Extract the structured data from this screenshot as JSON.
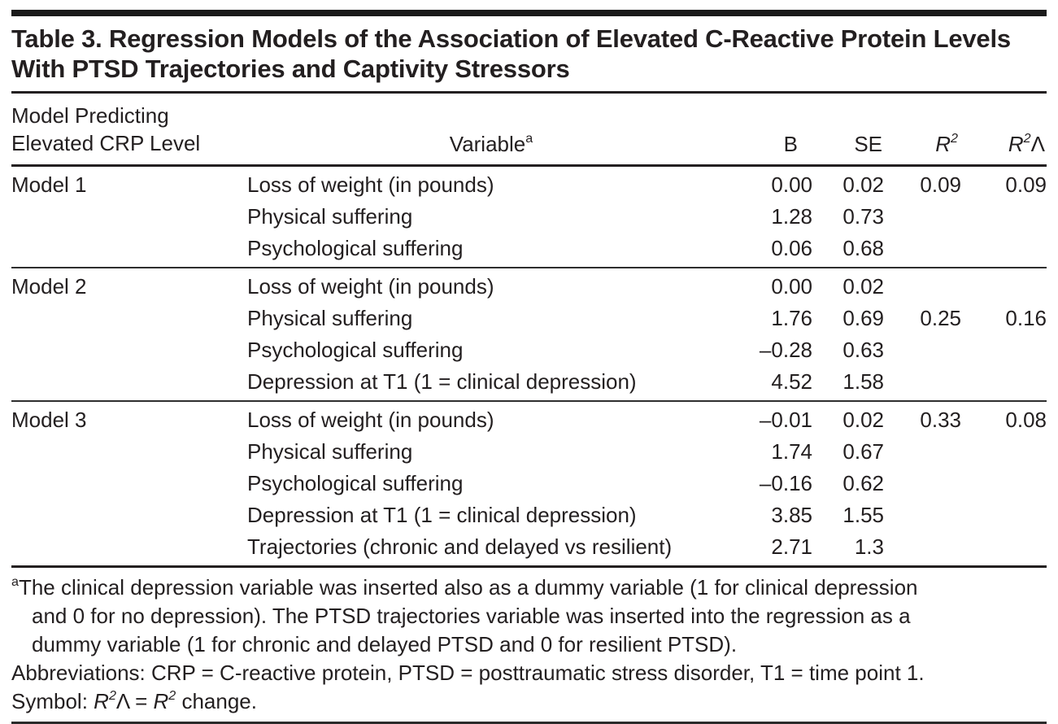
{
  "page": {
    "title": "Table 3. Regression Models of the Association of Elevated C-Reactive Protein Levels With PTSD Trajectories and Captivity Stressors"
  },
  "table": {
    "header": {
      "model_col_line1": "Model Predicting",
      "model_col_line2": "Elevated CRP Level",
      "variable_label": "Variable",
      "variable_footnote_marker": "a",
      "b_label": "B",
      "se_label": "SE",
      "r2_letter": "R",
      "r2_exponent": "2",
      "r2_change_letter": "R",
      "r2_change_exponent": "2",
      "r2_change_symbol": "Λ"
    },
    "models": [
      {
        "name": "Model 1",
        "rows": [
          {
            "variable": "Loss of weight (in pounds)",
            "b": "0.00",
            "se": "0.02",
            "r2": "0.09",
            "r2_change": "0.09"
          },
          {
            "variable": "Physical suffering",
            "b": "1.28",
            "se": "0.73",
            "r2": "",
            "r2_change": ""
          },
          {
            "variable": "Psychological suffering",
            "b": "0.06",
            "se": "0.68",
            "r2": "",
            "r2_change": ""
          }
        ]
      },
      {
        "name": "Model 2",
        "rows": [
          {
            "variable": "Loss of weight (in pounds)",
            "b": "0.00",
            "se": "0.02",
            "r2": "",
            "r2_change": ""
          },
          {
            "variable": "Physical suffering",
            "b": "1.76",
            "se": "0.69",
            "r2": "0.25",
            "r2_change": "0.16"
          },
          {
            "variable": "Psychological suffering",
            "b": "–0.28",
            "se": "0.63",
            "r2": "",
            "r2_change": ""
          },
          {
            "variable": "Depression at T1 (1 = clinical depression)",
            "b": "4.52",
            "se": "1.58",
            "r2": "",
            "r2_change": ""
          }
        ]
      },
      {
        "name": "Model 3",
        "rows": [
          {
            "variable": "Loss of weight (in pounds)",
            "b": "–0.01",
            "se": "0.02",
            "r2": "0.33",
            "r2_change": "0.08"
          },
          {
            "variable": "Physical suffering",
            "b": "1.74",
            "se": "0.67",
            "r2": "",
            "r2_change": ""
          },
          {
            "variable": "Psychological suffering",
            "b": "–0.16",
            "se": "0.62",
            "r2": "",
            "r2_change": ""
          },
          {
            "variable": "Depression at T1 (1 = clinical depression)",
            "b": "3.85",
            "se": "1.55",
            "r2": "",
            "r2_change": ""
          },
          {
            "variable": "Trajectories (chronic and delayed vs resilient)",
            "b": "2.71",
            "se": "1.3",
            "r2": "",
            "r2_change": ""
          }
        ]
      }
    ]
  },
  "footnotes": {
    "a_marker": "a",
    "a_line1": "The clinical depression variable was inserted also as a dummy variable (1 for clinical depression",
    "a_line2": "and 0 for no depression). The PTSD trajectories variable was inserted into the regression as a",
    "a_line3": "dummy variable (1 for chronic and delayed PTSD and 0 for resilient PTSD).",
    "abbreviations": "Abbreviations: CRP = C-reactive protein, PTSD = posttraumatic stress disorder, T1 = time point 1.",
    "symbol": {
      "prefix": "Symbol: ",
      "r_letter": "R",
      "exponent": "2",
      "lambda": "Λ",
      "equals": " = ",
      "r_letter2": "R",
      "exponent2": "2",
      "suffix": " change."
    }
  },
  "colors": {
    "text": "#231f20",
    "rule": "#231f20",
    "background": "#ffffff"
  }
}
